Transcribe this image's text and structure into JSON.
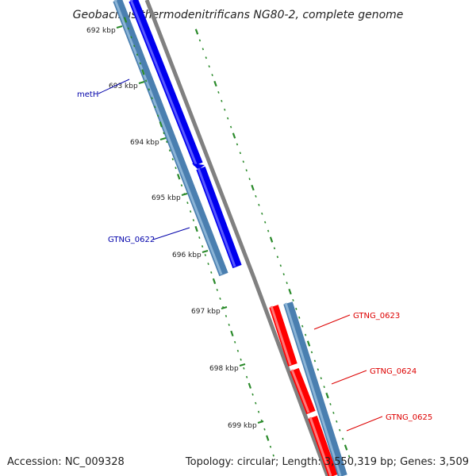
{
  "title": "Geobacillus thermodenitrificans NG80-2, complete genome",
  "footer": {
    "accession": "Accession: NC_009328",
    "summary": "Topology: circular; Length: 3,550,319 bp; Genes: 3,509"
  },
  "colors": {
    "forward_gene": "#0000ee",
    "reverse_gene": "#ff0000",
    "cds_bar": "#4682b4",
    "backbone": "#808080",
    "tick": "#2a8a2a",
    "forward_label": "#0000aa",
    "reverse_label": "#dd0000"
  },
  "ticks": [
    {
      "label": "692 kbp"
    },
    {
      "label": "693 kbp"
    },
    {
      "label": "694 kbp"
    },
    {
      "label": "695 kbp"
    },
    {
      "label": "696 kbp"
    },
    {
      "label": "697 kbp"
    },
    {
      "label": "698 kbp"
    },
    {
      "label": "699 kbp"
    }
  ],
  "genes": [
    {
      "name": "metH",
      "strand": "forward"
    },
    {
      "name": "GTNG_0622",
      "strand": "forward"
    },
    {
      "name": "GTNG_0623",
      "strand": "reverse"
    },
    {
      "name": "GTNG_0624",
      "strand": "reverse"
    },
    {
      "name": "GTNG_0625",
      "strand": "reverse"
    }
  ]
}
